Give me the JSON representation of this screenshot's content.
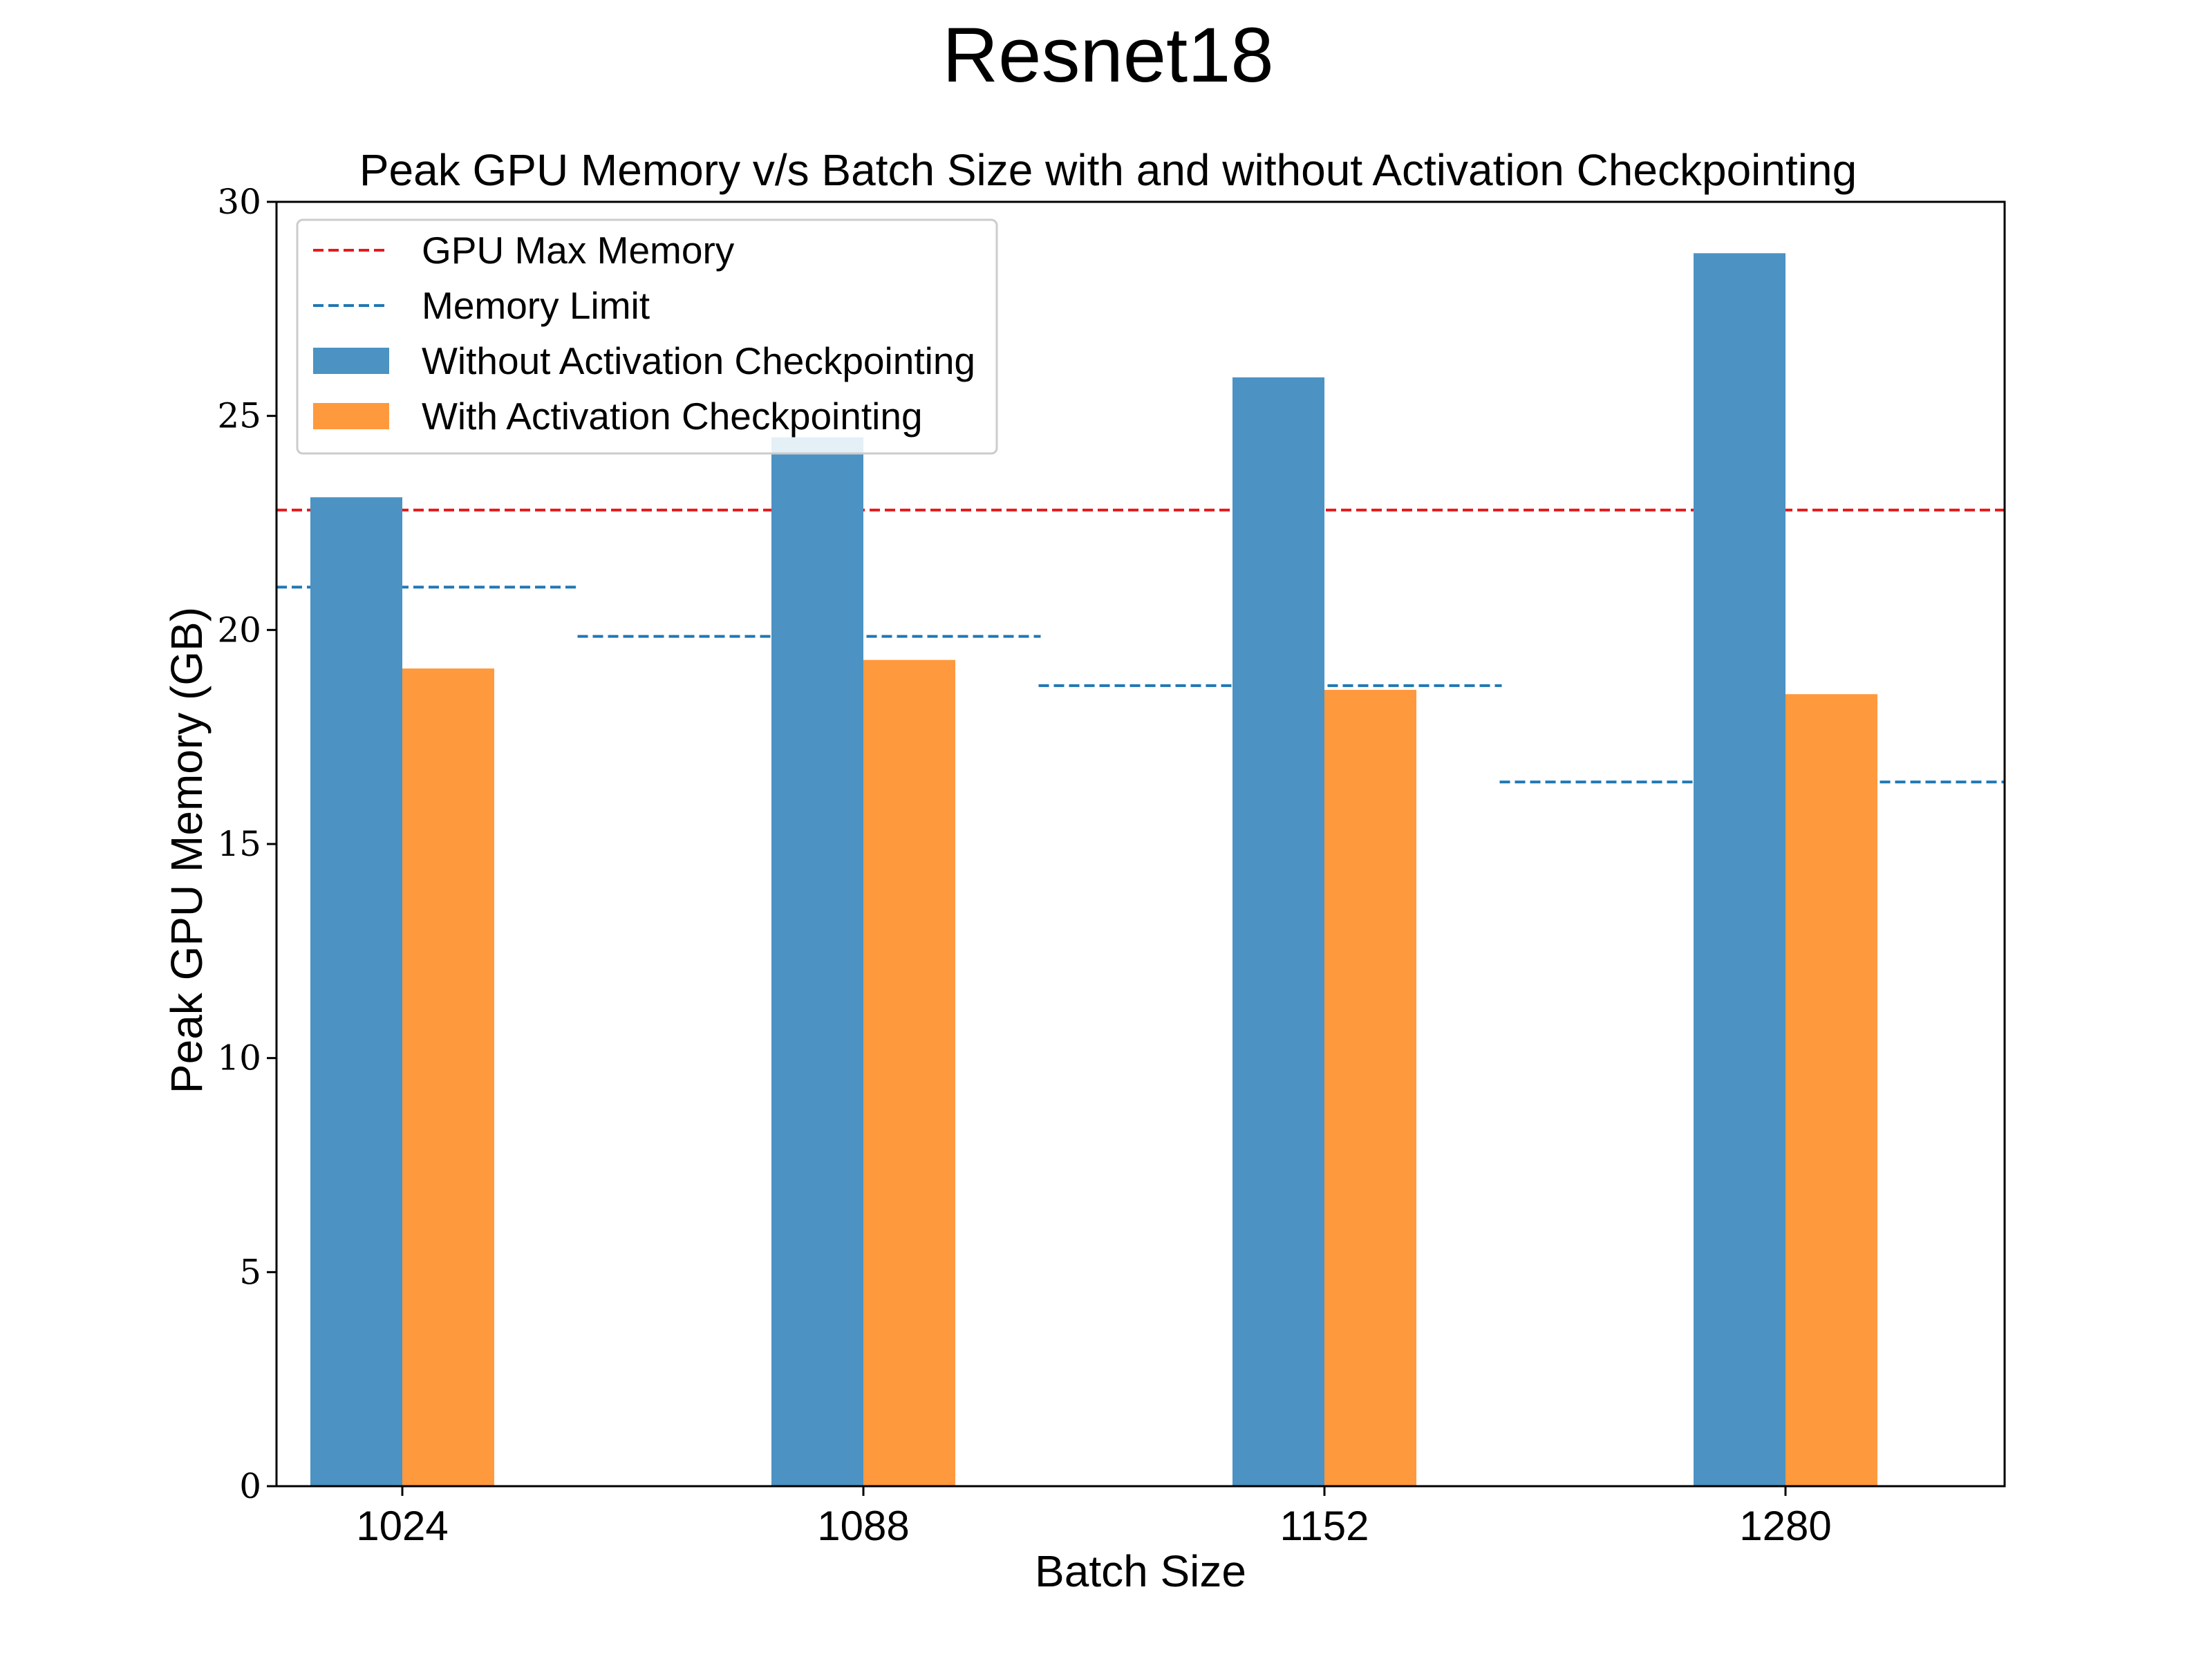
{
  "suptitle": "Resnet18",
  "chart_data": {
    "type": "bar",
    "title": "Peak GPU Memory v/s Batch Size with and without Activation Checkpointing",
    "xlabel": "Batch Size",
    "ylabel": "Peak GPU Memory (GB)",
    "categories": [
      "1024",
      "1088",
      "1152",
      "1280"
    ],
    "ylim": [
      0,
      30
    ],
    "yticks": [
      "0",
      "5",
      "10",
      "15",
      "20",
      "25",
      "30"
    ],
    "grid": false,
    "legend_position": "top-left",
    "series": [
      {
        "name": "Without Activation Checkpointing",
        "color": "#4c92c3",
        "values": [
          23.1,
          24.5,
          25.9,
          28.8
        ]
      },
      {
        "name": "With Activation Checkpointing",
        "color": "#ff993e",
        "values": [
          19.1,
          19.3,
          18.6,
          18.5
        ]
      }
    ],
    "reference_lines": [
      {
        "name": "GPU Max Memory",
        "color": "#e41a1c",
        "value": 22.8,
        "style": "dashed",
        "span": "full"
      },
      {
        "name": "Memory Limit",
        "color": "#1f77b4",
        "style": "dashed",
        "span": "per-category",
        "values": [
          21.0,
          19.85,
          18.7,
          16.45
        ]
      }
    ]
  }
}
